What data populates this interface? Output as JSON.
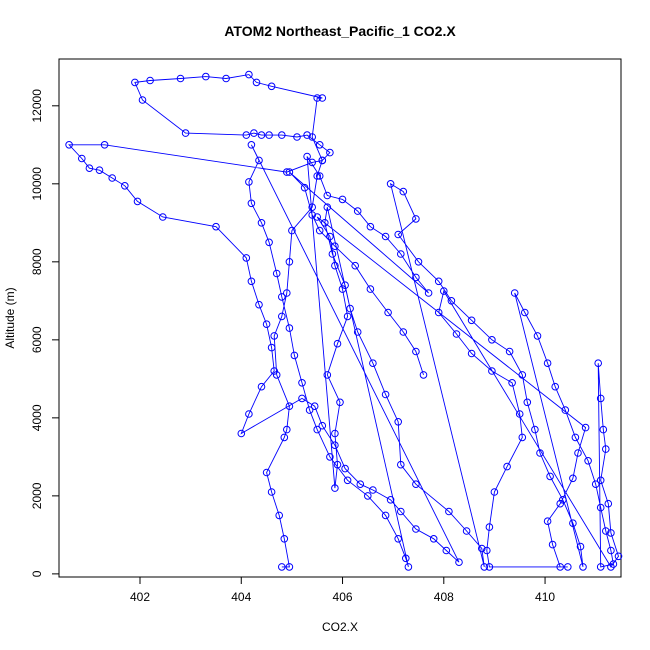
{
  "chart_data": {
    "type": "scatter",
    "title": "ATOM2 Northeast_Pacific_1 CO2.X",
    "xlabel": "CO2.X",
    "ylabel": "Altitude (m)",
    "xlim": [
      400.4,
      411.5
    ],
    "ylim": [
      -80,
      13200
    ],
    "xticks": [
      402,
      404,
      406,
      408,
      410
    ],
    "yticks": [
      0,
      2000,
      4000,
      6000,
      8000,
      10000,
      12000
    ],
    "grid": false,
    "legend": "none",
    "color": "#0000ff",
    "points": [
      [
        404.8,
        180
      ],
      [
        404.95,
        180
      ],
      [
        404.85,
        900
      ],
      [
        404.75,
        1500
      ],
      [
        404.6,
        2100
      ],
      [
        404.5,
        2600
      ],
      [
        404.85,
        3500
      ],
      [
        404.9,
        3700
      ],
      [
        404.95,
        4300
      ],
      [
        404.7,
        5100
      ],
      [
        404.65,
        6100
      ],
      [
        404.8,
        6600
      ],
      [
        404.9,
        7200
      ],
      [
        404.95,
        8000
      ],
      [
        405.0,
        8800
      ],
      [
        405.4,
        9400
      ],
      [
        405.5,
        10200
      ],
      [
        405.6,
        10600
      ],
      [
        405.4,
        11200
      ],
      [
        405.5,
        12200
      ],
      [
        405.6,
        12200
      ],
      [
        404.6,
        12500
      ],
      [
        404.3,
        12600
      ],
      [
        404.15,
        12800
      ],
      [
        403.7,
        12700
      ],
      [
        403.3,
        12750
      ],
      [
        402.8,
        12700
      ],
      [
        402.2,
        12650
      ],
      [
        401.9,
        12600
      ],
      [
        402.05,
        12150
      ],
      [
        402.9,
        11300
      ],
      [
        404.1,
        11250
      ],
      [
        404.25,
        11300
      ],
      [
        404.4,
        11250
      ],
      [
        404.55,
        11250
      ],
      [
        404.8,
        11250
      ],
      [
        405.1,
        11200
      ],
      [
        405.3,
        11250
      ],
      [
        405.55,
        11000
      ],
      [
        405.75,
        10800
      ],
      [
        405.6,
        10600
      ],
      [
        405.4,
        10550
      ],
      [
        404.9,
        10300
      ],
      [
        401.3,
        11000
      ],
      [
        400.6,
        11000
      ],
      [
        400.85,
        10650
      ],
      [
        401.0,
        10400
      ],
      [
        401.2,
        10350
      ],
      [
        401.45,
        10150
      ],
      [
        401.7,
        9950
      ],
      [
        401.95,
        9550
      ],
      [
        402.45,
        9150
      ],
      [
        403.5,
        8900
      ],
      [
        404.1,
        8100
      ],
      [
        404.2,
        7500
      ],
      [
        404.35,
        6900
      ],
      [
        404.5,
        6400
      ],
      [
        404.6,
        5800
      ],
      [
        404.65,
        5200
      ],
      [
        404.4,
        4800
      ],
      [
        404.15,
        4100
      ],
      [
        404.0,
        3600
      ],
      [
        405.2,
        4500
      ],
      [
        405.45,
        4300
      ],
      [
        405.6,
        3800
      ],
      [
        405.85,
        3300
      ],
      [
        406.05,
        2700
      ],
      [
        406.35,
        2300
      ],
      [
        406.6,
        2150
      ],
      [
        406.95,
        1900
      ],
      [
        407.15,
        1600
      ],
      [
        407.45,
        1150
      ],
      [
        407.8,
        900
      ],
      [
        408.05,
        600
      ],
      [
        408.3,
        300
      ],
      [
        404.2,
        11000
      ],
      [
        404.35,
        10600
      ],
      [
        404.15,
        10050
      ],
      [
        404.2,
        9500
      ],
      [
        404.4,
        9000
      ],
      [
        404.55,
        8500
      ],
      [
        404.7,
        7700
      ],
      [
        404.8,
        7100
      ],
      [
        404.95,
        6300
      ],
      [
        405.05,
        5600
      ],
      [
        405.2,
        4900
      ],
      [
        405.35,
        4200
      ],
      [
        405.5,
        3700
      ],
      [
        405.75,
        3000
      ],
      [
        406.1,
        2400
      ],
      [
        406.5,
        2000
      ],
      [
        406.85,
        1500
      ],
      [
        407.1,
        900
      ],
      [
        407.25,
        400
      ],
      [
        407.3,
        180
      ],
      [
        405.7,
        9400
      ],
      [
        405.65,
        9000
      ],
      [
        405.8,
        8200
      ],
      [
        406.05,
        7400
      ],
      [
        406.15,
        6800
      ],
      [
        406.3,
        6200
      ],
      [
        406.6,
        5400
      ],
      [
        406.85,
        4600
      ],
      [
        407.1,
        3900
      ],
      [
        407.15,
        2800
      ],
      [
        407.45,
        2300
      ],
      [
        408.1,
        1600
      ],
      [
        408.45,
        1100
      ],
      [
        408.75,
        650
      ],
      [
        408.8,
        180
      ],
      [
        406.95,
        10000
      ],
      [
        407.2,
        9800
      ],
      [
        407.45,
        9100
      ],
      [
        407.1,
        8700
      ],
      [
        407.5,
        8000
      ],
      [
        407.9,
        7500
      ],
      [
        408.15,
        7000
      ],
      [
        408.55,
        6500
      ],
      [
        408.95,
        6000
      ],
      [
        409.3,
        5700
      ],
      [
        409.55,
        5100
      ],
      [
        409.65,
        4400
      ],
      [
        409.8,
        3700
      ],
      [
        409.9,
        3100
      ],
      [
        410.1,
        2500
      ],
      [
        410.35,
        1900
      ],
      [
        410.55,
        1300
      ],
      [
        410.7,
        700
      ],
      [
        410.75,
        180
      ],
      [
        409.4,
        7200
      ],
      [
        409.6,
        6700
      ],
      [
        409.85,
        6100
      ],
      [
        410.05,
        5400
      ],
      [
        410.2,
        4800
      ],
      [
        410.4,
        4200
      ],
      [
        410.6,
        3500
      ],
      [
        410.85,
        2900
      ],
      [
        411.0,
        2300
      ],
      [
        411.1,
        1700
      ],
      [
        411.2,
        1100
      ],
      [
        411.3,
        600
      ],
      [
        411.35,
        250
      ],
      [
        411.1,
        180
      ],
      [
        411.05,
        5400
      ],
      [
        411.1,
        4500
      ],
      [
        411.15,
        3700
      ],
      [
        411.2,
        3200
      ],
      [
        411.1,
        2400
      ],
      [
        411.25,
        1800
      ],
      [
        411.3,
        1050
      ],
      [
        411.45,
        450
      ],
      [
        411.3,
        180
      ],
      [
        408.0,
        7250
      ],
      [
        407.9,
        6700
      ],
      [
        408.25,
        6150
      ],
      [
        408.55,
        5650
      ],
      [
        408.95,
        5200
      ],
      [
        409.35,
        4900
      ],
      [
        409.5,
        4100
      ],
      [
        409.55,
        3500
      ],
      [
        409.25,
        2750
      ],
      [
        409.0,
        2100
      ],
      [
        408.9,
        1200
      ],
      [
        408.85,
        600
      ],
      [
        408.9,
        180
      ],
      [
        410.45,
        180
      ],
      [
        410.3,
        180
      ],
      [
        410.15,
        750
      ],
      [
        410.05,
        1350
      ],
      [
        410.3,
        1800
      ],
      [
        410.55,
        2450
      ],
      [
        410.65,
        3100
      ],
      [
        410.8,
        3750
      ],
      [
        405.5,
        9150
      ],
      [
        405.75,
        8650
      ],
      [
        405.85,
        7900
      ],
      [
        406.0,
        7300
      ],
      [
        406.1,
        6600
      ],
      [
        405.9,
        5900
      ],
      [
        405.7,
        5100
      ],
      [
        405.95,
        4400
      ],
      [
        405.85,
        3600
      ],
      [
        405.9,
        2800
      ],
      [
        405.85,
        2200
      ],
      [
        405.3,
        10700
      ],
      [
        405.55,
        10200
      ],
      [
        405.7,
        9700
      ],
      [
        406.0,
        9600
      ],
      [
        406.3,
        9300
      ],
      [
        406.55,
        8900
      ],
      [
        406.85,
        8650
      ],
      [
        407.15,
        8200
      ],
      [
        407.45,
        7600
      ],
      [
        407.7,
        7200
      ],
      [
        404.95,
        10300
      ],
      [
        405.25,
        9900
      ],
      [
        405.4,
        9200
      ],
      [
        405.55,
        8800
      ],
      [
        405.85,
        8400
      ],
      [
        406.25,
        7900
      ],
      [
        406.55,
        7300
      ],
      [
        406.9,
        6700
      ],
      [
        407.2,
        6200
      ],
      [
        407.45,
        5700
      ],
      [
        407.6,
        5100
      ]
    ]
  }
}
